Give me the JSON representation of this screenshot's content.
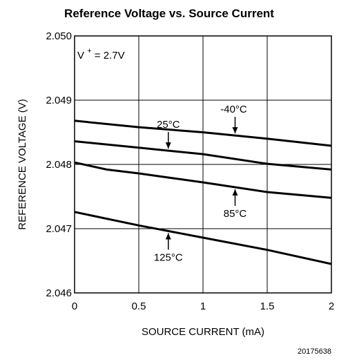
{
  "chart_data": {
    "type": "line",
    "title": "Reference Voltage vs. Source Current",
    "xlabel": "SOURCE CURRENT (mA)",
    "ylabel": "REFERENCE VOLTAGE (V)",
    "xlim": [
      0,
      2
    ],
    "ylim": [
      2.046,
      2.05
    ],
    "x_ticks": [
      "0",
      "0.5",
      "1",
      "1.5",
      "2"
    ],
    "y_ticks": [
      "2.046",
      "2.047",
      "2.048",
      "2.049",
      "2.050"
    ],
    "grid": true,
    "condition": {
      "main": "V",
      "superscript": "+",
      "rest": " = 2.7V"
    },
    "figure_id": "20175638",
    "series": [
      {
        "name": "-40°C",
        "x": [
          0,
          0.5,
          1,
          1.5,
          2
        ],
        "y": [
          2.04868,
          2.04858,
          2.0485,
          2.0484,
          2.04829
        ]
      },
      {
        "name": "25°C",
        "x": [
          0,
          0.5,
          1,
          1.5,
          2
        ],
        "y": [
          2.04836,
          2.04826,
          2.04816,
          2.04801,
          2.04792
        ]
      },
      {
        "name": "85°C",
        "x": [
          0,
          0.25,
          0.5,
          1,
          1.5,
          2
        ],
        "y": [
          2.04803,
          2.04792,
          2.04786,
          2.04772,
          2.04757,
          2.04748
        ]
      },
      {
        "name": "125°C",
        "x": [
          0,
          0.5,
          1,
          1.5,
          2
        ],
        "y": [
          2.04726,
          2.04705,
          2.04686,
          2.04667,
          2.04645
        ]
      }
    ],
    "annotations": [
      {
        "text": "-40°C",
        "series": "-40°C",
        "arrow_x": 1.25
      },
      {
        "text": "25°C",
        "series": "25°C",
        "arrow_x": 0.73
      },
      {
        "text": "85°C",
        "series": "85°C",
        "arrow_x": 1.25
      },
      {
        "text": "125°C",
        "series": "125°C",
        "arrow_x": 0.73
      }
    ]
  }
}
